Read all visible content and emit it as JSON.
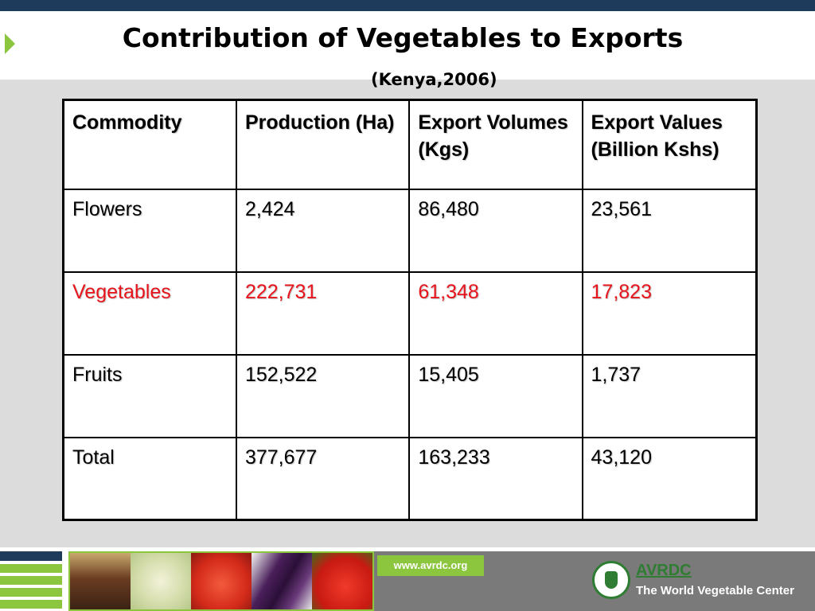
{
  "slide": {
    "title": "Contribution of Vegetables to Exports",
    "subtitle": "(Kenya,2006)"
  },
  "table": {
    "headers": [
      "Commodity",
      "Production (Ha)",
      "Export Volumes (Kgs)",
      "Export Values (Billion Kshs)"
    ],
    "rows": [
      [
        "Flowers",
        "2,424",
        "86,480",
        "23,561"
      ],
      [
        "Vegetables",
        "222,731",
        "61,348",
        "17,823"
      ],
      [
        "Fruits",
        "152,522",
        "15,405",
        "1,737"
      ],
      [
        "Total",
        "377,677",
        "163,233",
        "43,120"
      ]
    ],
    "highlight_color": "#e8141c"
  },
  "footer": {
    "url": "www.avrdc.org",
    "org_name": "AVRDC",
    "org_tagline": "The World Vegetable Center",
    "accent_green": "#8cc63f",
    "brand_blue": "#1f3b5b"
  }
}
